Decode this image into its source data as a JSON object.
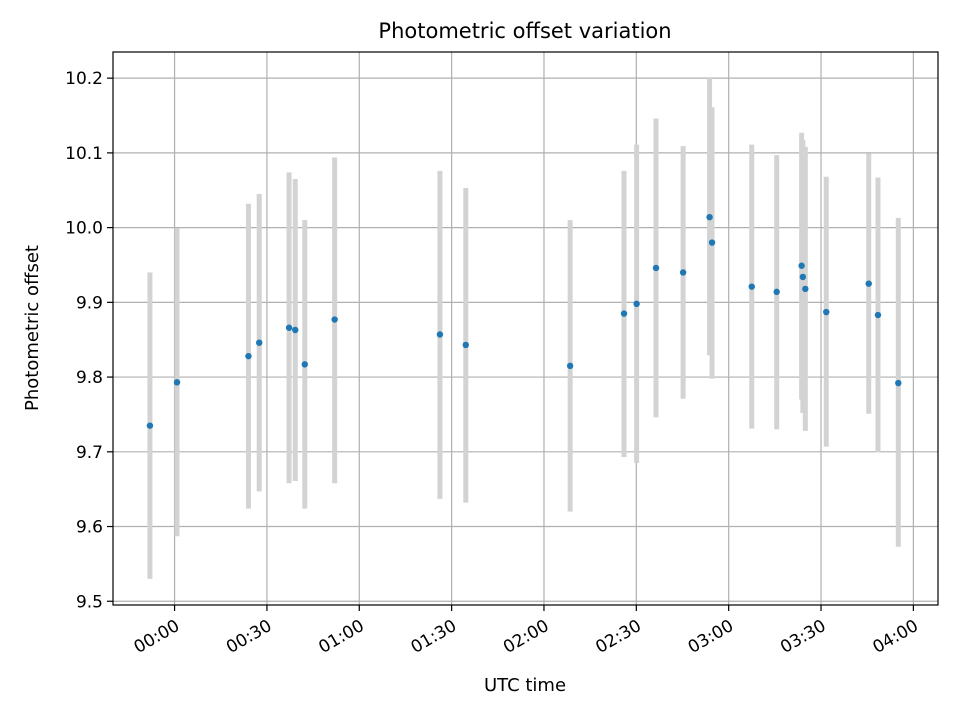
{
  "chart_data": {
    "type": "scatter",
    "title": "Photometric offset variation",
    "xlabel": "UTC time",
    "ylabel": "Photometric offset",
    "x_unit": "minutes of UTC day",
    "xlim": [
      -20,
      248
    ],
    "ylim": [
      9.495,
      10.235
    ],
    "x_ticks": [
      {
        "value": 0,
        "label": "00:00"
      },
      {
        "value": 30,
        "label": "00:30"
      },
      {
        "value": 60,
        "label": "01:00"
      },
      {
        "value": 90,
        "label": "01:30"
      },
      {
        "value": 120,
        "label": "02:00"
      },
      {
        "value": 150,
        "label": "02:30"
      },
      {
        "value": 180,
        "label": "03:00"
      },
      {
        "value": 210,
        "label": "03:30"
      },
      {
        "value": 240,
        "label": "04:00"
      }
    ],
    "y_ticks": [
      {
        "value": 9.5,
        "label": "9.5"
      },
      {
        "value": 9.6,
        "label": "9.6"
      },
      {
        "value": 9.7,
        "label": "9.7"
      },
      {
        "value": 9.8,
        "label": "9.8"
      },
      {
        "value": 9.9,
        "label": "9.9"
      },
      {
        "value": 10.0,
        "label": "10.0"
      },
      {
        "value": 10.1,
        "label": "10.1"
      },
      {
        "value": 10.2,
        "label": "10.2"
      }
    ],
    "grid": true,
    "colors": {
      "point": "#1f77b4",
      "errorbar": "#d3d3d3",
      "grid": "#b0b0b0"
    },
    "points": [
      {
        "t": -8.0,
        "y": 9.735,
        "lo": 9.53,
        "hi": 9.94
      },
      {
        "t": 0.8,
        "y": 9.793,
        "lo": 9.587,
        "hi": 9.999
      },
      {
        "t": 24.0,
        "y": 9.828,
        "lo": 9.624,
        "hi": 10.032
      },
      {
        "t": 27.5,
        "y": 9.846,
        "lo": 9.647,
        "hi": 10.045
      },
      {
        "t": 37.2,
        "y": 9.866,
        "lo": 9.658,
        "hi": 10.074
      },
      {
        "t": 39.2,
        "y": 9.863,
        "lo": 9.661,
        "hi": 10.065
      },
      {
        "t": 42.3,
        "y": 9.817,
        "lo": 9.624,
        "hi": 10.01
      },
      {
        "t": 52.0,
        "y": 9.877,
        "lo": 9.658,
        "hi": 10.094
      },
      {
        "t": 86.2,
        "y": 9.857,
        "lo": 9.637,
        "hi": 10.076
      },
      {
        "t": 94.6,
        "y": 9.843,
        "lo": 9.632,
        "hi": 10.053
      },
      {
        "t": 128.5,
        "y": 9.815,
        "lo": 9.62,
        "hi": 10.01
      },
      {
        "t": 146.0,
        "y": 9.885,
        "lo": 9.693,
        "hi": 10.076
      },
      {
        "t": 150.1,
        "y": 9.898,
        "lo": 9.685,
        "hi": 10.111
      },
      {
        "t": 156.4,
        "y": 9.946,
        "lo": 9.746,
        "hi": 10.146
      },
      {
        "t": 165.2,
        "y": 9.94,
        "lo": 9.771,
        "hi": 10.109
      },
      {
        "t": 173.8,
        "y": 10.014,
        "lo": 9.829,
        "hi": 10.2
      },
      {
        "t": 174.6,
        "y": 9.98,
        "lo": 9.798,
        "hi": 10.161
      },
      {
        "t": 187.5,
        "y": 9.921,
        "lo": 9.731,
        "hi": 10.111
      },
      {
        "t": 195.6,
        "y": 9.914,
        "lo": 9.73,
        "hi": 10.097
      },
      {
        "t": 203.7,
        "y": 9.949,
        "lo": 9.77,
        "hi": 10.127
      },
      {
        "t": 204.1,
        "y": 9.934,
        "lo": 9.752,
        "hi": 10.117
      },
      {
        "t": 204.9,
        "y": 9.918,
        "lo": 9.728,
        "hi": 10.108
      },
      {
        "t": 211.7,
        "y": 9.887,
        "lo": 9.707,
        "hi": 10.068
      },
      {
        "t": 225.5,
        "y": 9.925,
        "lo": 9.751,
        "hi": 10.099
      },
      {
        "t": 228.5,
        "y": 9.883,
        "lo": 9.699,
        "hi": 10.067
      },
      {
        "t": 235.1,
        "y": 9.792,
        "lo": 9.573,
        "hi": 10.013
      }
    ]
  }
}
